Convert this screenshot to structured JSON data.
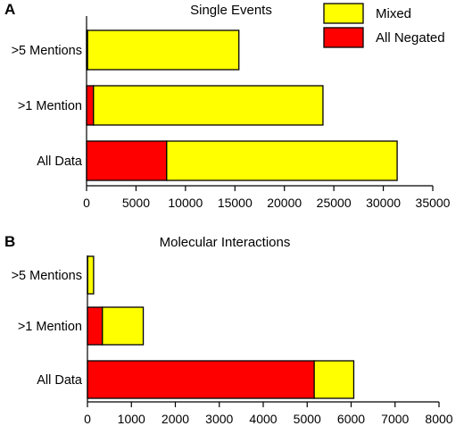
{
  "chart_data": [
    {
      "panel": "A",
      "title": "Single Events",
      "type": "bar",
      "orientation": "horizontal",
      "stacked": true,
      "categories": [
        ">5 Mentions",
        ">1 Mention",
        "All Data"
      ],
      "series": [
        {
          "name": "All Negated",
          "color": "#ff0000",
          "values": [
            100,
            700,
            8100
          ]
        },
        {
          "name": "Mixed",
          "color": "#ffff00",
          "values": [
            15300,
            23200,
            23300
          ]
        }
      ],
      "xlim": [
        0,
        35000
      ],
      "xticks": [
        0,
        5000,
        10000,
        15000,
        20000,
        25000,
        30000,
        35000
      ],
      "xlabel": "",
      "ylabel": "",
      "legend": {
        "position": "top-right",
        "entries": [
          {
            "label": "Mixed",
            "color": "#ffff00"
          },
          {
            "label": "All Negated",
            "color": "#ff0000"
          }
        ]
      }
    },
    {
      "panel": "B",
      "title": "Molecular Interactions",
      "type": "bar",
      "orientation": "horizontal",
      "stacked": true,
      "categories": [
        ">5 Mentions",
        ">1 Mention",
        "All Data"
      ],
      "series": [
        {
          "name": "All Negated",
          "color": "#ff0000",
          "values": [
            5,
            340,
            5160
          ]
        },
        {
          "name": "Mixed",
          "color": "#ffff00",
          "values": [
            135,
            930,
            900
          ]
        }
      ],
      "xlim": [
        0,
        8000
      ],
      "xticks": [
        0,
        1000,
        2000,
        3000,
        4000,
        5000,
        6000,
        7000,
        8000
      ],
      "xlabel": "",
      "ylabel": ""
    }
  ]
}
